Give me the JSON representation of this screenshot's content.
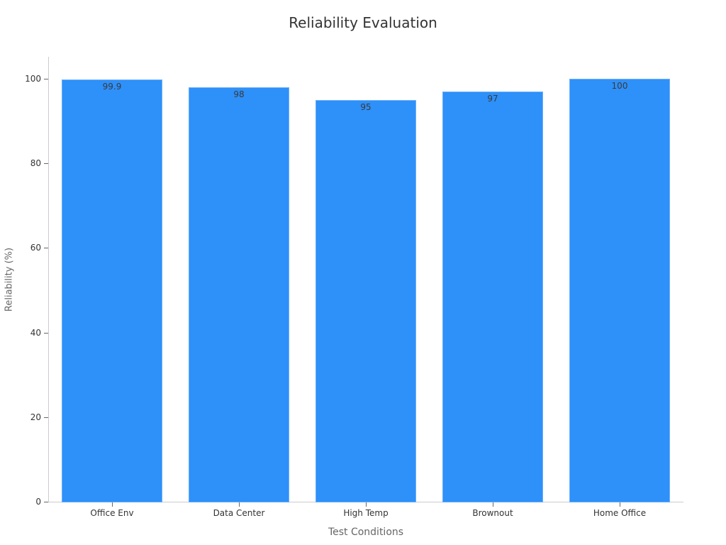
{
  "chart_data": {
    "type": "bar",
    "title": "Reliability Evaluation",
    "xlabel": "Test Conditions",
    "ylabel": "Reliability (%)",
    "categories": [
      "Office Env",
      "Data Center",
      "High Temp",
      "Brownout",
      "Home Office"
    ],
    "values": [
      99.9,
      98,
      95,
      97,
      100
    ],
    "value_labels": [
      "99.9",
      "98",
      "95",
      "97",
      "100"
    ],
    "ylim": [
      0,
      100
    ],
    "yticks": [
      0,
      20,
      40,
      60,
      80,
      100
    ],
    "grid": false,
    "legend": null,
    "bar_color": "#2e90f9"
  }
}
